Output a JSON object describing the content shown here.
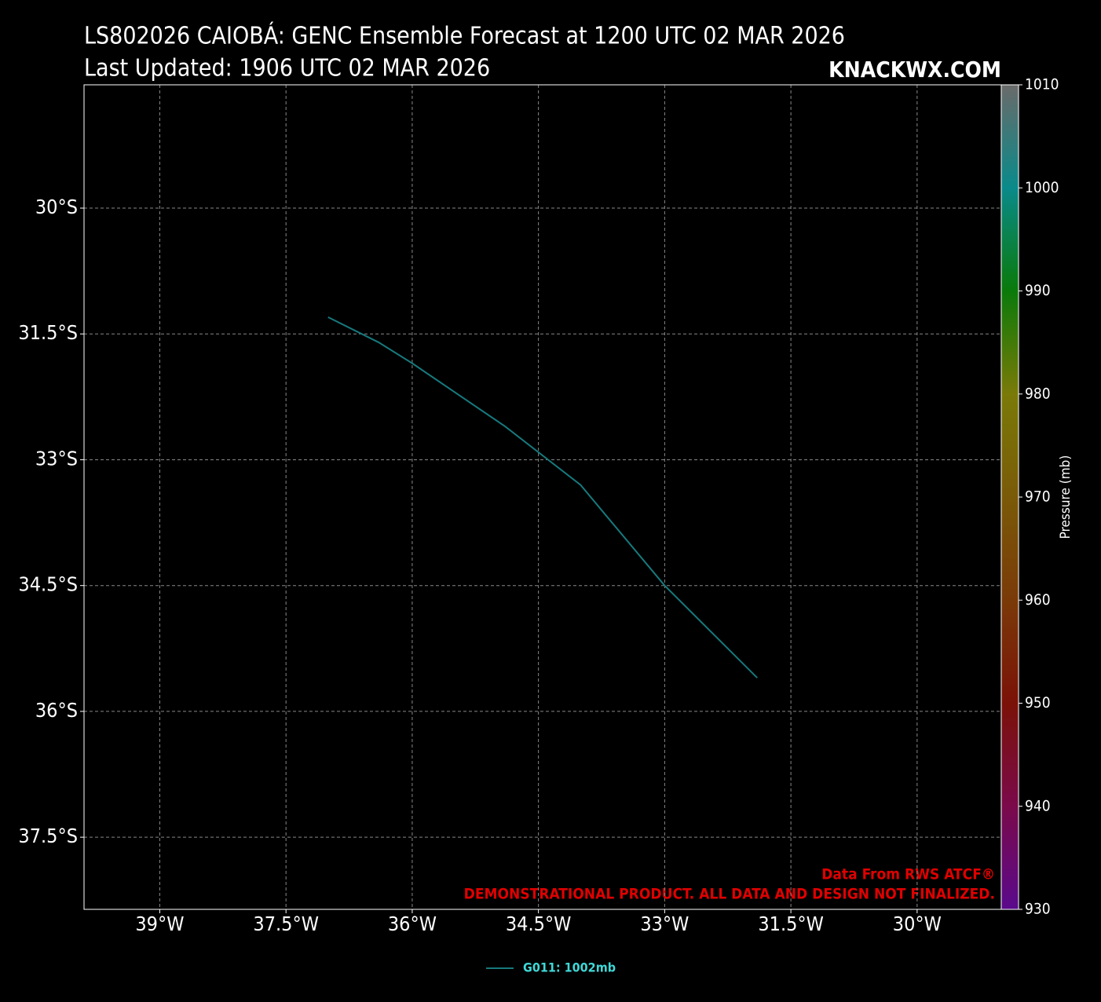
{
  "chart_data": {
    "type": "line",
    "title": "LS802026 CAIOBÁ: GENC Ensemble Forecast at 1200 UTC 02 MAR 2026",
    "subtitle": "Last Updated: 1906 UTC 02 MAR 2026",
    "watermark": "KNACKWX.COM",
    "annotations": [
      "Data From RWS ATCF®",
      "DEMONSTRATIONAL PRODUCT. ALL DATA AND DESIGN NOT FINALIZED."
    ],
    "series": [
      {
        "name": "G011: 1002mb",
        "color": "#17797d",
        "x": [
          -37.0,
          -36.4,
          -36.0,
          -34.9,
          -34.0,
          -33.0,
          -31.9
        ],
        "values": [
          -31.3,
          -31.6,
          -31.85,
          -32.6,
          -33.3,
          -34.5,
          -35.6
        ]
      }
    ],
    "xlim": [
      -39.9,
      -29.0
    ],
    "xticks": [
      {
        "value": -39,
        "label": "39°W"
      },
      {
        "value": -37.5,
        "label": "37.5°W"
      },
      {
        "value": -36,
        "label": "36°W"
      },
      {
        "value": -34.5,
        "label": "34.5°W"
      },
      {
        "value": -33,
        "label": "33°W"
      },
      {
        "value": -31.5,
        "label": "31.5°W"
      },
      {
        "value": -30,
        "label": "30°W"
      }
    ],
    "ylim": [
      -38.36,
      -28.53
    ],
    "yticks": [
      {
        "value": -30,
        "label": "30°S"
      },
      {
        "value": -31.5,
        "label": "31.5°S"
      },
      {
        "value": -33,
        "label": "33°S"
      },
      {
        "value": -34.5,
        "label": "34.5°S"
      },
      {
        "value": -36,
        "label": "36°S"
      },
      {
        "value": -37.5,
        "label": "37.5°S"
      }
    ],
    "grid": true,
    "colorbar": {
      "label": "Pressure (mb)",
      "lim": [
        930,
        1010
      ],
      "ticks": [
        930,
        940,
        950,
        960,
        970,
        980,
        990,
        1000,
        1010
      ],
      "colors": [
        "#5a0a8c",
        "#7a0a4a",
        "#7a1208",
        "#7a3a08",
        "#7a5a08",
        "#7a7a08",
        "#0a7a0a",
        "#0a8a8a",
        "#6a6a6a"
      ]
    }
  }
}
